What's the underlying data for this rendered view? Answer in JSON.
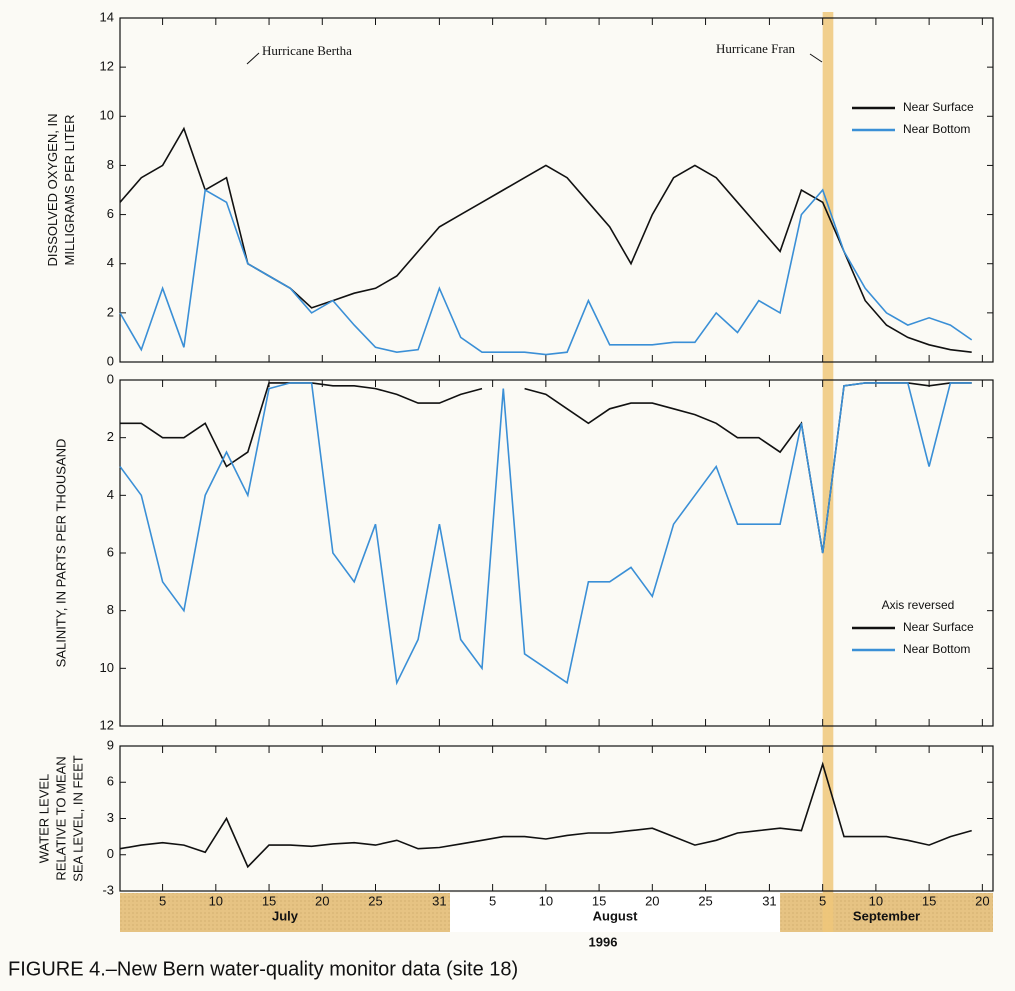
{
  "chart_data": [
    {
      "type": "line",
      "y_label": [
        "DISSOLVED OXYGEN, IN",
        "MILLIGRAMS PER LITER"
      ],
      "annotations": [
        "Hurricane Bertha",
        "Hurricane Fran"
      ],
      "legend": "upper right",
      "x": [
        "1996-07-01",
        "1996-07-03",
        "1996-07-05",
        "1996-07-07",
        "1996-07-09",
        "1996-07-11",
        "1996-07-13",
        "1996-07-15",
        "1996-07-17",
        "1996-07-19",
        "1996-07-21",
        "1996-07-23",
        "1996-07-25",
        "1996-07-27",
        "1996-07-29",
        "1996-07-31",
        "1996-08-02",
        "1996-08-04",
        "1996-08-06",
        "1996-08-08",
        "1996-08-10",
        "1996-08-12",
        "1996-08-14",
        "1996-08-16",
        "1996-08-18",
        "1996-08-20",
        "1996-08-22",
        "1996-08-24",
        "1996-08-26",
        "1996-08-28",
        "1996-08-30",
        "1996-09-01",
        "1996-09-03",
        "1996-09-05",
        "1996-09-07",
        "1996-09-09",
        "1996-09-11",
        "1996-09-13",
        "1996-09-15",
        "1996-09-17",
        "1996-09-19"
      ],
      "series": [
        {
          "name": "Near Surface",
          "color": "#111111",
          "values": [
            6.5,
            7.5,
            8.0,
            9.5,
            7.0,
            7.5,
            4.0,
            3.5,
            3.0,
            2.2,
            2.5,
            2.8,
            3.0,
            3.5,
            4.5,
            5.5,
            6.0,
            6.5,
            7.0,
            7.5,
            8.0,
            7.5,
            6.5,
            5.5,
            4.0,
            6.0,
            7.5,
            8.0,
            7.5,
            6.5,
            5.5,
            4.5,
            7.0,
            6.5,
            4.5,
            2.5,
            1.5,
            1.0,
            0.7,
            0.5,
            0.4
          ]
        },
        {
          "name": "Near Bottom",
          "color": "#3a8fd6",
          "values": [
            2.0,
            0.5,
            3.0,
            0.6,
            7.0,
            6.5,
            4.0,
            3.5,
            3.0,
            2.0,
            2.5,
            1.5,
            0.6,
            0.4,
            0.5,
            3.0,
            1.0,
            0.4,
            0.4,
            0.4,
            0.3,
            0.4,
            2.5,
            0.7,
            0.7,
            0.7,
            0.8,
            0.8,
            2.0,
            1.2,
            2.5,
            2.0,
            6.0,
            7.0,
            4.5,
            3.0,
            2.0,
            1.5,
            1.8,
            1.5,
            0.9
          ]
        }
      ],
      "xlim": [
        "1996-07-01",
        "1996-09-21"
      ],
      "ylim": [
        0,
        14
      ],
      "yticks": [
        0,
        2,
        4,
        6,
        8,
        10,
        12,
        14
      ]
    },
    {
      "type": "line",
      "y_label": [
        "SALINITY, IN PARTS PER THOUSAND"
      ],
      "legend_title": "Axis reversed",
      "legend": "lower right",
      "y_reversed": true,
      "x": [
        "1996-07-01",
        "1996-07-03",
        "1996-07-05",
        "1996-07-07",
        "1996-07-09",
        "1996-07-11",
        "1996-07-13",
        "1996-07-15",
        "1996-07-17",
        "1996-07-19",
        "1996-07-21",
        "1996-07-23",
        "1996-07-25",
        "1996-07-27",
        "1996-07-29",
        "1996-07-31",
        "1996-08-02",
        "1996-08-04",
        "1996-08-06",
        "1996-08-08",
        "1996-08-10",
        "1996-08-12",
        "1996-08-14",
        "1996-08-16",
        "1996-08-18",
        "1996-08-20",
        "1996-08-22",
        "1996-08-24",
        "1996-08-26",
        "1996-08-28",
        "1996-08-30",
        "1996-09-01",
        "1996-09-03",
        "1996-09-05",
        "1996-09-07",
        "1996-09-09",
        "1996-09-11",
        "1996-09-13",
        "1996-09-15",
        "1996-09-17",
        "1996-09-19"
      ],
      "series": [
        {
          "name": "Near Surface",
          "color": "#111111",
          "values": [
            1.5,
            1.5,
            2.0,
            2.0,
            1.5,
            3.0,
            2.5,
            0.1,
            0.1,
            0.1,
            0.2,
            0.2,
            0.3,
            0.5,
            0.8,
            0.8,
            0.5,
            0.3,
            null,
            0.3,
            0.5,
            1.0,
            1.5,
            1.0,
            0.8,
            0.8,
            1.0,
            1.2,
            1.5,
            2.0,
            2.0,
            2.5,
            1.5,
            6.0,
            0.2,
            0.1,
            0.1,
            0.1,
            0.2,
            0.1,
            0.1
          ]
        },
        {
          "name": "Near Bottom",
          "color": "#3a8fd6",
          "values": [
            3.0,
            4.0,
            7.0,
            8.0,
            4.0,
            2.5,
            4.0,
            0.3,
            0.1,
            0.1,
            6.0,
            7.0,
            5.0,
            10.5,
            9.0,
            5.0,
            9.0,
            10.0,
            0.3,
            9.5,
            10.0,
            10.5,
            7.0,
            7.0,
            6.5,
            7.5,
            5.0,
            4.0,
            3.0,
            5.0,
            5.0,
            5.0,
            1.5,
            6.0,
            0.2,
            0.1,
            0.1,
            0.1,
            3.0,
            0.1,
            0.1
          ]
        }
      ],
      "xlim": [
        "1996-07-01",
        "1996-09-21"
      ],
      "ylim": [
        0,
        12
      ],
      "yticks": [
        0,
        2,
        4,
        6,
        8,
        10,
        12
      ]
    },
    {
      "type": "line",
      "y_label": [
        "WATER LEVEL",
        "RELATIVE TO MEAN",
        "SEA LEVEL, IN FEET"
      ],
      "x": [
        "1996-07-01",
        "1996-07-03",
        "1996-07-05",
        "1996-07-07",
        "1996-07-09",
        "1996-07-11",
        "1996-07-13",
        "1996-07-15",
        "1996-07-17",
        "1996-07-19",
        "1996-07-21",
        "1996-07-23",
        "1996-07-25",
        "1996-07-27",
        "1996-07-29",
        "1996-07-31",
        "1996-08-02",
        "1996-08-04",
        "1996-08-06",
        "1996-08-08",
        "1996-08-10",
        "1996-08-12",
        "1996-08-14",
        "1996-08-16",
        "1996-08-18",
        "1996-08-20",
        "1996-08-22",
        "1996-08-24",
        "1996-08-26",
        "1996-08-28",
        "1996-08-30",
        "1996-09-01",
        "1996-09-03",
        "1996-09-05",
        "1996-09-07",
        "1996-09-09",
        "1996-09-11",
        "1996-09-13",
        "1996-09-15",
        "1996-09-17",
        "1996-09-19"
      ],
      "values": [
        0.5,
        0.8,
        1.0,
        0.8,
        0.2,
        3.0,
        -1.0,
        0.8,
        0.8,
        0.7,
        0.9,
        1.0,
        0.8,
        1.2,
        0.5,
        0.6,
        0.9,
        1.2,
        1.5,
        1.5,
        1.3,
        1.6,
        1.8,
        1.8,
        2.0,
        2.2,
        1.5,
        0.8,
        1.2,
        1.8,
        2.0,
        2.2,
        2.0,
        7.5,
        1.5,
        1.5,
        1.5,
        1.2,
        0.8,
        1.5,
        2.0
      ],
      "color": "#111111",
      "xlim": [
        "1996-07-01",
        "1996-09-21"
      ],
      "ylim": [
        -3,
        9
      ],
      "yticks": [
        -3,
        0,
        3,
        6,
        9
      ],
      "xticks": [
        {
          "value": "1996-07-05",
          "label": "5"
        },
        {
          "value": "1996-07-10",
          "label": "10"
        },
        {
          "value": "1996-07-15",
          "label": "15"
        },
        {
          "value": "1996-07-20",
          "label": "20"
        },
        {
          "value": "1996-07-25",
          "label": "25"
        },
        {
          "value": "1996-07-31",
          "label": "31"
        },
        {
          "value": "1996-08-05",
          "label": "5"
        },
        {
          "value": "1996-08-10",
          "label": "10"
        },
        {
          "value": "1996-08-15",
          "label": "15"
        },
        {
          "value": "1996-08-20",
          "label": "20"
        },
        {
          "value": "1996-08-25",
          "label": "25"
        },
        {
          "value": "1996-08-31",
          "label": "31"
        },
        {
          "value": "1996-09-05",
          "label": "5"
        },
        {
          "value": "1996-09-10",
          "label": "10"
        },
        {
          "value": "1996-09-15",
          "label": "15"
        },
        {
          "value": "1996-09-20",
          "label": "20"
        }
      ],
      "months": [
        "July",
        "August",
        "September"
      ],
      "year_label": "1996"
    }
  ],
  "highlight": [
    "1996-09-05",
    "1996-09-06"
  ],
  "caption": "FIGURE 4.–New Bern water-quality monitor data (site 18)"
}
